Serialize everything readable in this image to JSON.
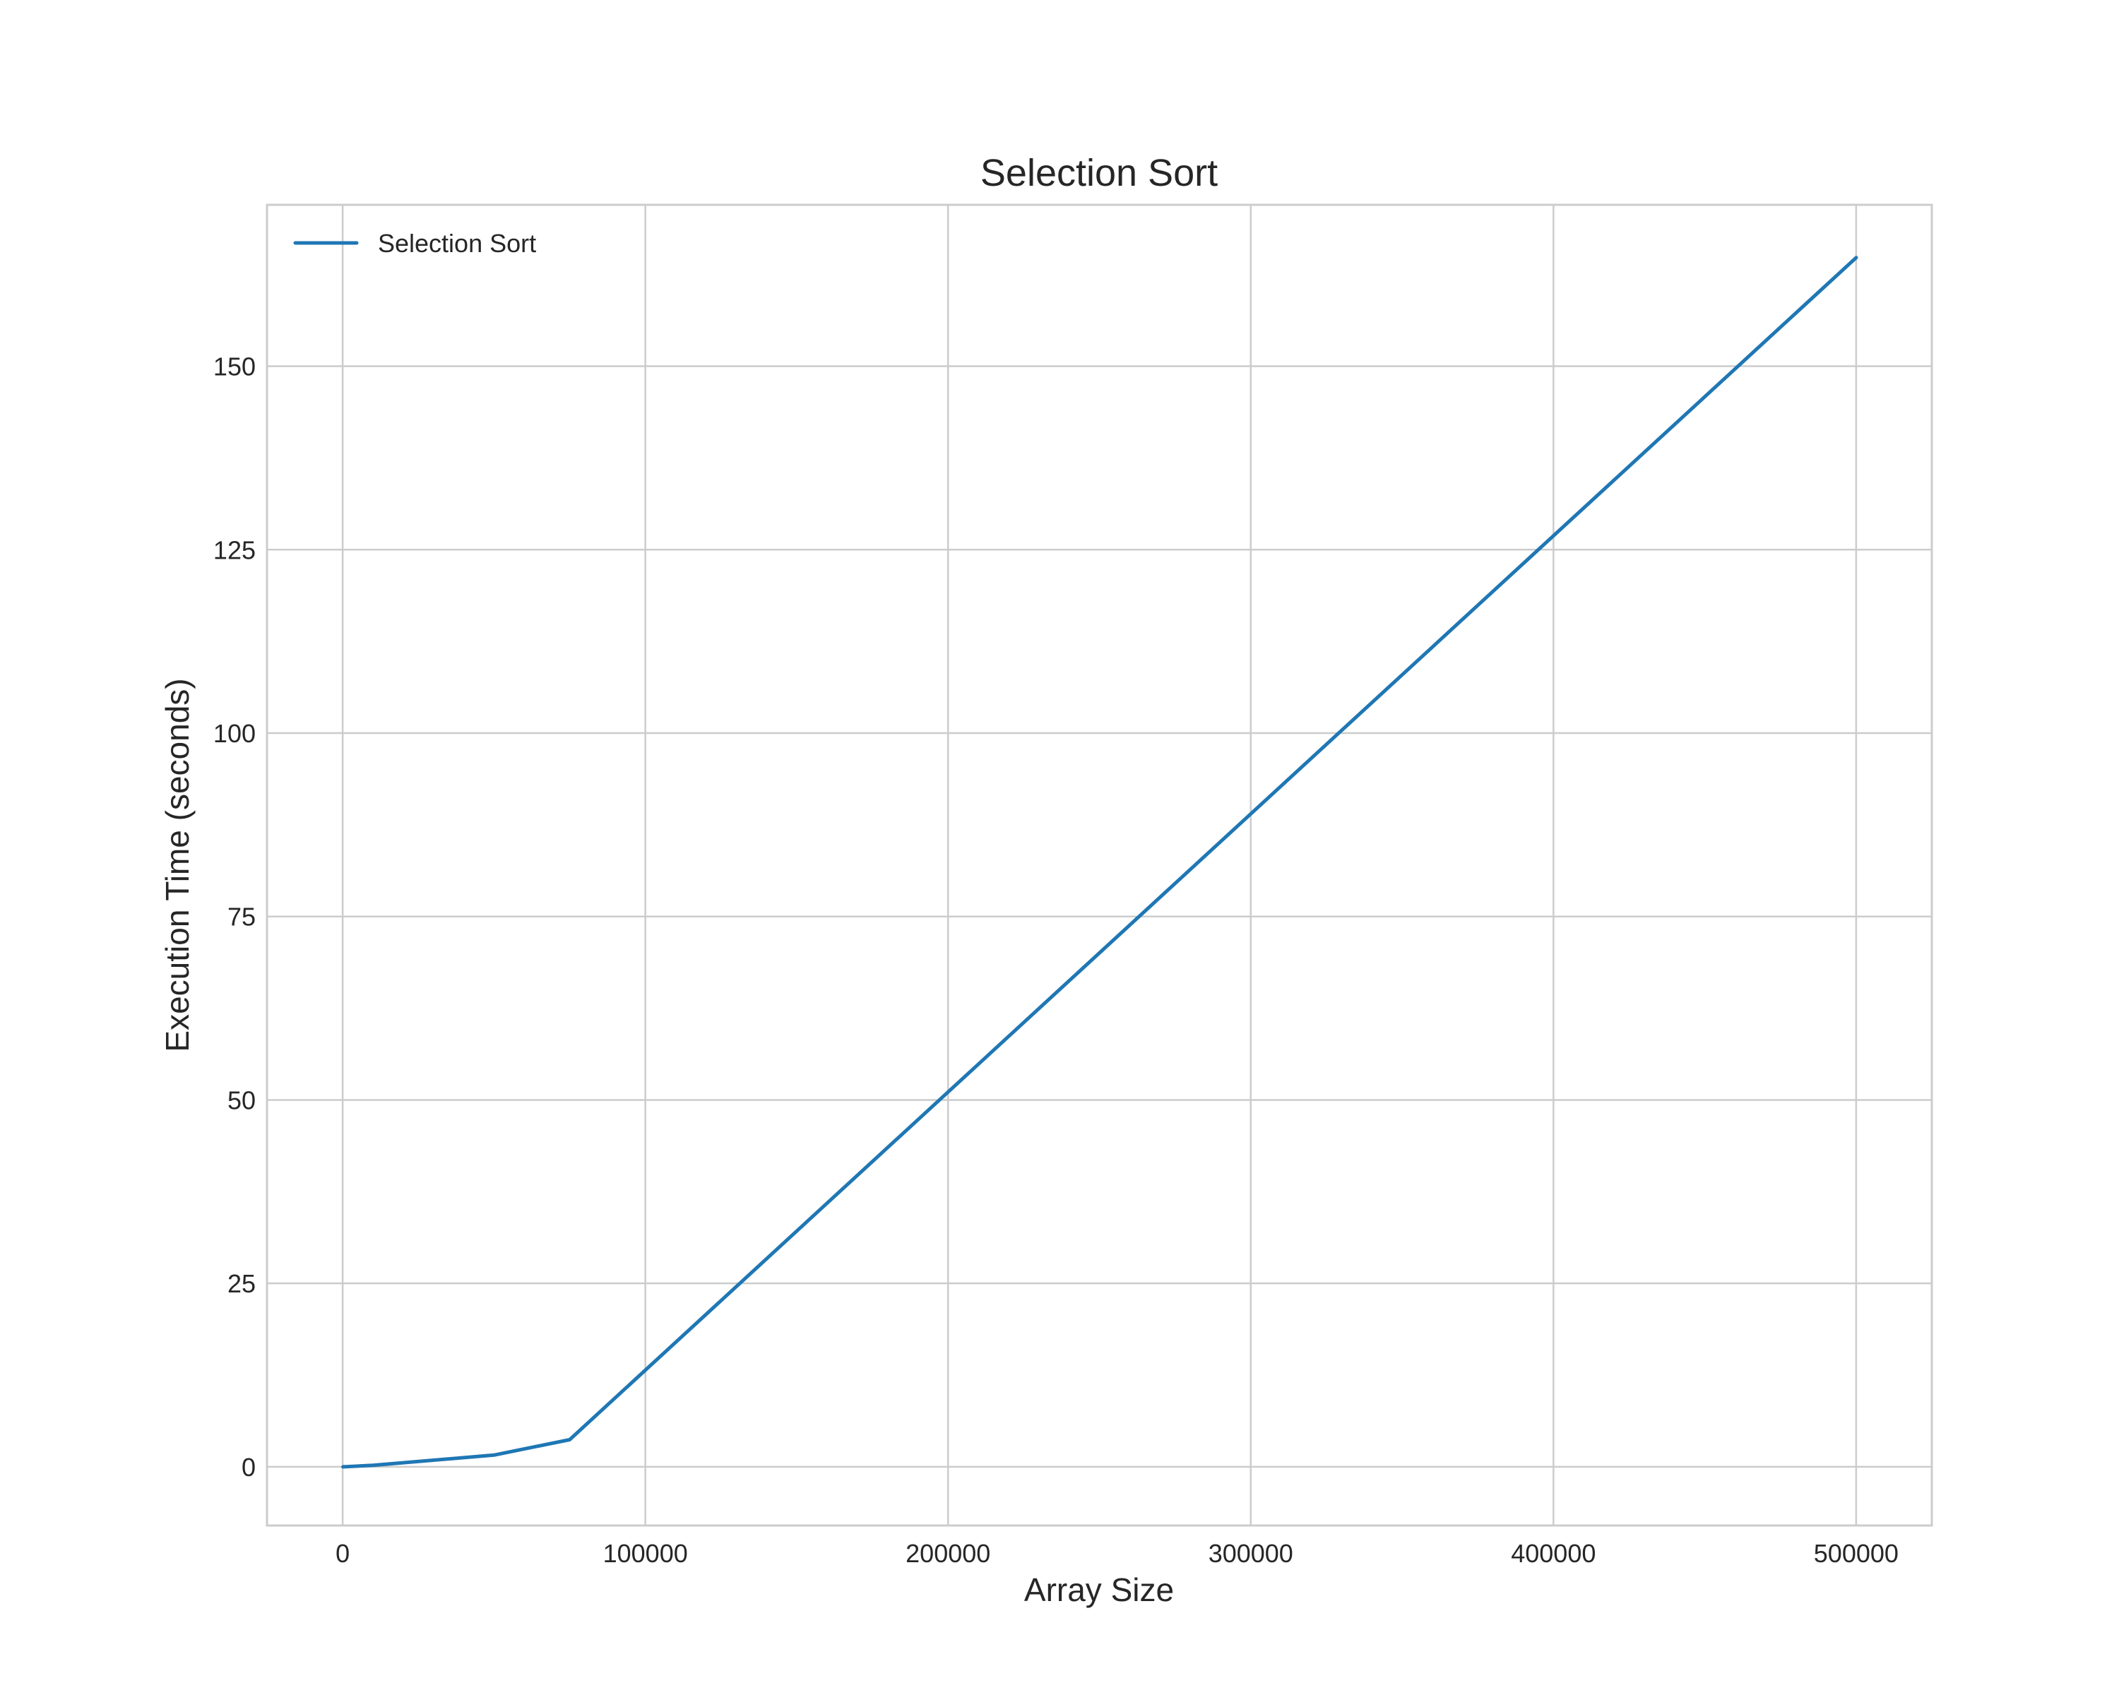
{
  "chart_data": {
    "type": "line",
    "title": "Selection Sort",
    "xlabel": "Array Size",
    "ylabel": "Execution Time (seconds)",
    "xlim": [
      -25000,
      525000
    ],
    "ylim": [
      -8,
      172
    ],
    "xticks": [
      0,
      100000,
      200000,
      300000,
      400000,
      500000
    ],
    "xtick_labels": [
      "0",
      "100000",
      "200000",
      "300000",
      "400000",
      "500000"
    ],
    "yticks": [
      0,
      25,
      50,
      75,
      100,
      125,
      150
    ],
    "ytick_labels": [
      "0",
      "25",
      "50",
      "75",
      "100",
      "125",
      "150"
    ],
    "grid": true,
    "legend_position": "top-left",
    "series": [
      {
        "name": "Selection Sort",
        "color": "#1f77b4",
        "x": [
          100,
          1000,
          10000,
          50000,
          75000,
          500000
        ],
        "y": [
          0.0,
          0.02,
          0.2,
          1.6,
          3.7,
          164.8
        ]
      }
    ]
  }
}
